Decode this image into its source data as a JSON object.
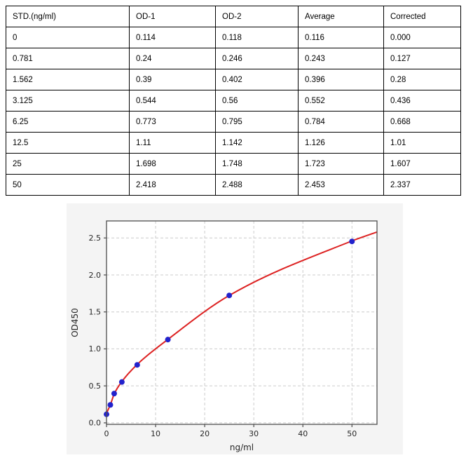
{
  "table": {
    "headers": [
      "STD.(ng/ml)",
      "OD-1",
      "OD-2",
      "Average",
      "Corrected"
    ],
    "rows": [
      [
        "0",
        "0.114",
        "0.118",
        "0.116",
        "0.000"
      ],
      [
        "0.781",
        "0.24",
        "0.246",
        "0.243",
        "0.127"
      ],
      [
        "1.562",
        "0.39",
        "0.402",
        "0.396",
        "0.28"
      ],
      [
        "3.125",
        "0.544",
        "0.56",
        "0.552",
        "0.436"
      ],
      [
        "6.25",
        "0.773",
        "0.795",
        "0.784",
        "0.668"
      ],
      [
        "12.5",
        "1.11",
        "1.142",
        "1.126",
        "1.01"
      ],
      [
        "25",
        "1.698",
        "1.748",
        "1.723",
        "1.607"
      ],
      [
        "50",
        "2.418",
        "2.488",
        "2.453",
        "2.337"
      ]
    ]
  },
  "chart_data": {
    "type": "scatter",
    "title": "",
    "xlabel": "ng/ml",
    "ylabel": "OD450",
    "x": [
      0,
      0.781,
      1.562,
      3.125,
      6.25,
      12.5,
      25,
      50
    ],
    "y": [
      0.116,
      0.243,
      0.396,
      0.552,
      0.784,
      1.126,
      1.723,
      2.453
    ],
    "fit_curve": {
      "x": [
        0,
        0.781,
        1.562,
        3.125,
        6.25,
        12.5,
        25,
        50,
        55.1
      ],
      "y": [
        0.13,
        0.245,
        0.39,
        0.558,
        0.79,
        1.128,
        1.722,
        2.46,
        2.58
      ]
    },
    "xticks": [
      0,
      10,
      20,
      30,
      40,
      50
    ],
    "yticks": [
      0.0,
      0.5,
      1.0,
      1.5,
      2.0,
      2.5
    ],
    "xlim": [
      0,
      55.1
    ],
    "ylim": [
      -0.02,
      2.73
    ],
    "grid": true,
    "legend": false,
    "colors": {
      "points": "#2222cc",
      "line": "#dd2222",
      "figure_bg": "#f4f4f4",
      "plot_bg": "#ffffff",
      "grid": "#cccccc",
      "spine": "#4d4d4d",
      "tick_text": "#262626"
    }
  }
}
